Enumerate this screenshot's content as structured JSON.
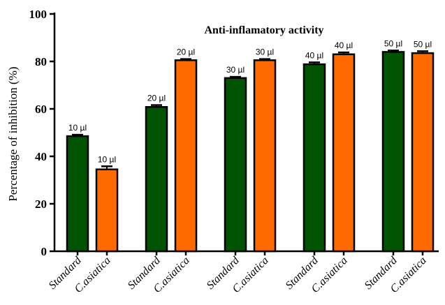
{
  "chart_data": {
    "type": "bar",
    "title": "Anti-inflamatory activity",
    "xlabel": "",
    "ylabel": "Percentage of inhibition (%)",
    "ylim": [
      0,
      100
    ],
    "yticks": [
      0,
      20,
      40,
      60,
      80,
      100
    ],
    "grid": false,
    "legend": "none",
    "bars": [
      {
        "category": "Standard",
        "value": 48.5,
        "error": 0.6,
        "label": "10 µl",
        "color": "#005300"
      },
      {
        "category": "C.asiatica",
        "value": 34.5,
        "error": 1.3,
        "label": "10 µl",
        "color": "#ff6a00"
      },
      {
        "category": "Standard",
        "value": 60.8,
        "error": 0.8,
        "label": "20 µl",
        "color": "#005300"
      },
      {
        "category": "C.asiatica",
        "value": 80.5,
        "error": 0.5,
        "label": "20 µl",
        "color": "#ff6a00"
      },
      {
        "category": "Standard",
        "value": 73.0,
        "error": 0.5,
        "label": "30 µl",
        "color": "#005300"
      },
      {
        "category": "C.asiatica",
        "value": 80.5,
        "error": 0.5,
        "label": "30 µl",
        "color": "#ff6a00"
      },
      {
        "category": "Standard",
        "value": 78.8,
        "error": 0.8,
        "label": "40 µl",
        "color": "#005300"
      },
      {
        "category": "C.asiatica",
        "value": 83.0,
        "error": 0.8,
        "label": "40 µl",
        "color": "#ff6a00"
      },
      {
        "category": "Standard",
        "value": 84.0,
        "error": 0.6,
        "label": "50 µl",
        "color": "#005300"
      },
      {
        "category": "C.asiatica",
        "value": 83.5,
        "error": 0.8,
        "label": "50 µl",
        "color": "#ff6a00"
      }
    ]
  }
}
